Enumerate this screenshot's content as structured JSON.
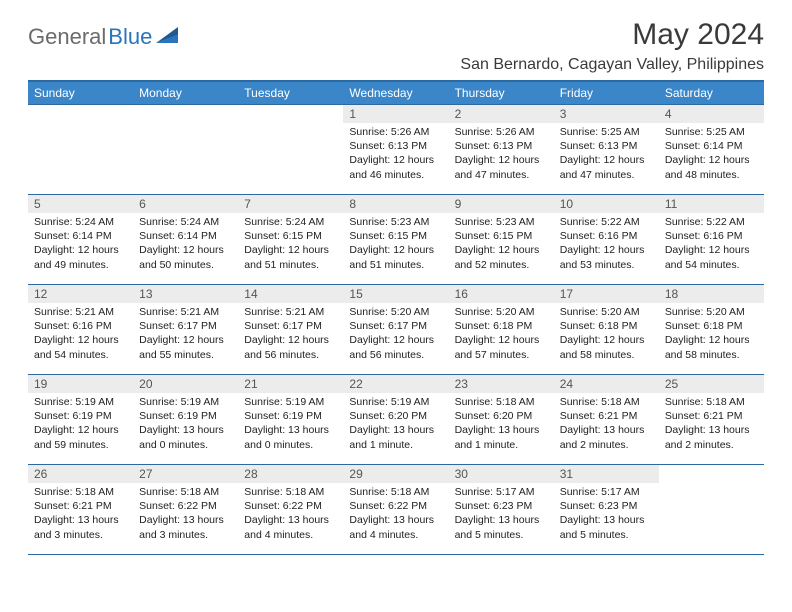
{
  "logo": {
    "general": "General",
    "blue": "Blue"
  },
  "title": "May 2024",
  "location": "San Bernardo, Cagayan Valley, Philippines",
  "colors": {
    "header_bg": "#3a86c8",
    "header_border": "#2a6aa0",
    "daynum_bg": "#ececec",
    "text": "#222222",
    "logo_gray": "#6b6b6b",
    "logo_blue": "#2a74bc"
  },
  "weekdays": [
    "Sunday",
    "Monday",
    "Tuesday",
    "Wednesday",
    "Thursday",
    "Friday",
    "Saturday"
  ],
  "weeks": [
    [
      null,
      null,
      null,
      {
        "n": "1",
        "sr": "5:26 AM",
        "ss": "6:13 PM",
        "dl": "12 hours and 46 minutes."
      },
      {
        "n": "2",
        "sr": "5:26 AM",
        "ss": "6:13 PM",
        "dl": "12 hours and 47 minutes."
      },
      {
        "n": "3",
        "sr": "5:25 AM",
        "ss": "6:13 PM",
        "dl": "12 hours and 47 minutes."
      },
      {
        "n": "4",
        "sr": "5:25 AM",
        "ss": "6:14 PM",
        "dl": "12 hours and 48 minutes."
      }
    ],
    [
      {
        "n": "5",
        "sr": "5:24 AM",
        "ss": "6:14 PM",
        "dl": "12 hours and 49 minutes."
      },
      {
        "n": "6",
        "sr": "5:24 AM",
        "ss": "6:14 PM",
        "dl": "12 hours and 50 minutes."
      },
      {
        "n": "7",
        "sr": "5:24 AM",
        "ss": "6:15 PM",
        "dl": "12 hours and 51 minutes."
      },
      {
        "n": "8",
        "sr": "5:23 AM",
        "ss": "6:15 PM",
        "dl": "12 hours and 51 minutes."
      },
      {
        "n": "9",
        "sr": "5:23 AM",
        "ss": "6:15 PM",
        "dl": "12 hours and 52 minutes."
      },
      {
        "n": "10",
        "sr": "5:22 AM",
        "ss": "6:16 PM",
        "dl": "12 hours and 53 minutes."
      },
      {
        "n": "11",
        "sr": "5:22 AM",
        "ss": "6:16 PM",
        "dl": "12 hours and 54 minutes."
      }
    ],
    [
      {
        "n": "12",
        "sr": "5:21 AM",
        "ss": "6:16 PM",
        "dl": "12 hours and 54 minutes."
      },
      {
        "n": "13",
        "sr": "5:21 AM",
        "ss": "6:17 PM",
        "dl": "12 hours and 55 minutes."
      },
      {
        "n": "14",
        "sr": "5:21 AM",
        "ss": "6:17 PM",
        "dl": "12 hours and 56 minutes."
      },
      {
        "n": "15",
        "sr": "5:20 AM",
        "ss": "6:17 PM",
        "dl": "12 hours and 56 minutes."
      },
      {
        "n": "16",
        "sr": "5:20 AM",
        "ss": "6:18 PM",
        "dl": "12 hours and 57 minutes."
      },
      {
        "n": "17",
        "sr": "5:20 AM",
        "ss": "6:18 PM",
        "dl": "12 hours and 58 minutes."
      },
      {
        "n": "18",
        "sr": "5:20 AM",
        "ss": "6:18 PM",
        "dl": "12 hours and 58 minutes."
      }
    ],
    [
      {
        "n": "19",
        "sr": "5:19 AM",
        "ss": "6:19 PM",
        "dl": "12 hours and 59 minutes."
      },
      {
        "n": "20",
        "sr": "5:19 AM",
        "ss": "6:19 PM",
        "dl": "13 hours and 0 minutes."
      },
      {
        "n": "21",
        "sr": "5:19 AM",
        "ss": "6:19 PM",
        "dl": "13 hours and 0 minutes."
      },
      {
        "n": "22",
        "sr": "5:19 AM",
        "ss": "6:20 PM",
        "dl": "13 hours and 1 minute."
      },
      {
        "n": "23",
        "sr": "5:18 AM",
        "ss": "6:20 PM",
        "dl": "13 hours and 1 minute."
      },
      {
        "n": "24",
        "sr": "5:18 AM",
        "ss": "6:21 PM",
        "dl": "13 hours and 2 minutes."
      },
      {
        "n": "25",
        "sr": "5:18 AM",
        "ss": "6:21 PM",
        "dl": "13 hours and 2 minutes."
      }
    ],
    [
      {
        "n": "26",
        "sr": "5:18 AM",
        "ss": "6:21 PM",
        "dl": "13 hours and 3 minutes."
      },
      {
        "n": "27",
        "sr": "5:18 AM",
        "ss": "6:22 PM",
        "dl": "13 hours and 3 minutes."
      },
      {
        "n": "28",
        "sr": "5:18 AM",
        "ss": "6:22 PM",
        "dl": "13 hours and 4 minutes."
      },
      {
        "n": "29",
        "sr": "5:18 AM",
        "ss": "6:22 PM",
        "dl": "13 hours and 4 minutes."
      },
      {
        "n": "30",
        "sr": "5:17 AM",
        "ss": "6:23 PM",
        "dl": "13 hours and 5 minutes."
      },
      {
        "n": "31",
        "sr": "5:17 AM",
        "ss": "6:23 PM",
        "dl": "13 hours and 5 minutes."
      },
      null
    ]
  ],
  "labels": {
    "sunrise": "Sunrise: ",
    "sunset": "Sunset: ",
    "daylight": "Daylight: "
  }
}
